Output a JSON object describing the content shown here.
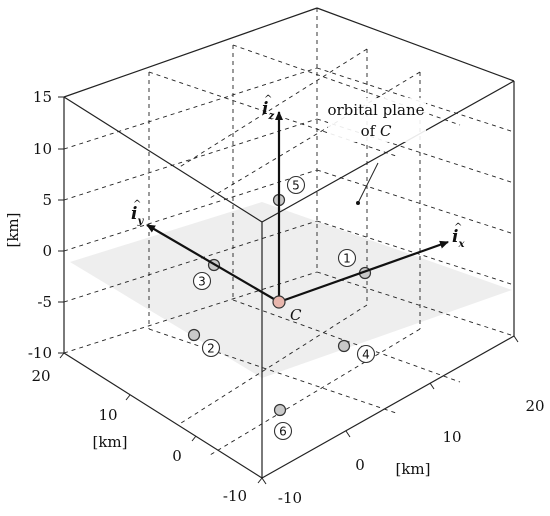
{
  "axes": {
    "vertical": {
      "unit": "[km]",
      "ticks": [
        "15",
        "10",
        "5",
        "0",
        "-5",
        "-10"
      ]
    },
    "left_depth": {
      "unit": "[km]",
      "ticks": [
        "20",
        "10",
        "0",
        "-10"
      ]
    },
    "right_depth": {
      "unit": "[km]",
      "ticks": [
        "-10",
        "0",
        "10",
        "20"
      ]
    }
  },
  "frame": {
    "x_axis": {
      "letter": "i",
      "hat": "^",
      "subscript": "x"
    },
    "y_axis": {
      "letter": "i",
      "hat": "^",
      "subscript": "y"
    },
    "z_axis": {
      "letter": "i",
      "hat": "^",
      "subscript": "z"
    },
    "origin_label": "C"
  },
  "annotation": {
    "line1": "orbital plane",
    "line2_prefix": "of ",
    "line2_symbol": "C"
  },
  "satellites": [
    {
      "id": "1",
      "label": "1"
    },
    {
      "id": "2",
      "label": "2"
    },
    {
      "id": "3",
      "label": "3"
    },
    {
      "id": "4",
      "label": "4"
    },
    {
      "id": "5",
      "label": "5"
    },
    {
      "id": "6",
      "label": "6"
    }
  ],
  "colors": {
    "chief_fill": "#e8b6ad",
    "deputy_fill": "#c9c9c9",
    "plane_fill": "#eeeeee"
  }
}
